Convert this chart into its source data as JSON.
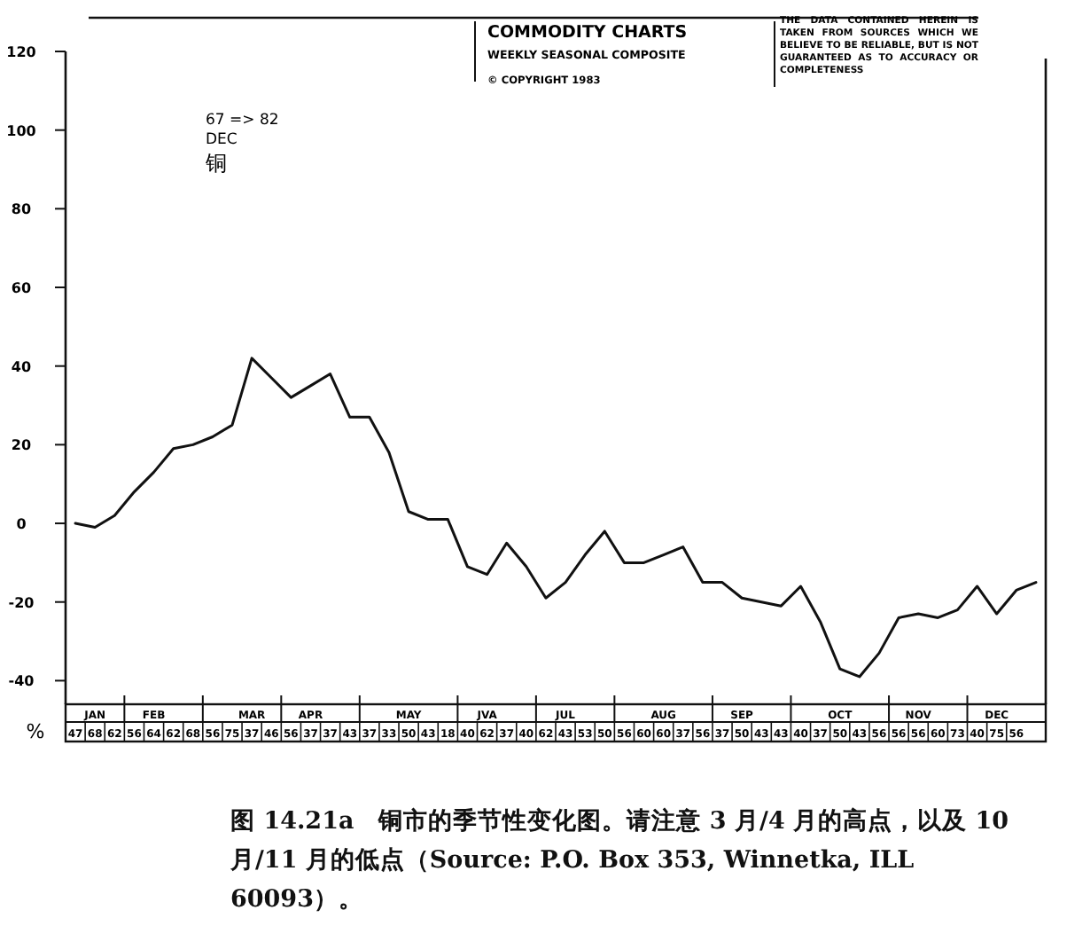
{
  "chart_data": [
    {
      "type": "line",
      "title": "COMMODITY CHARTS",
      "subtitle": "WEEKLY SEASONAL COMPOSITE",
      "annotations": [
        "67 => 82",
        "DEC",
        "铜",
        "© COPYRIGHT 1983",
        "THE DATA CONTAINED HEREIN IS TAKEN FROM SOURCES WHICH WE BELIEVE TO BE RELIABLE, BUT IS NOT GUARANTEED AS TO ACCURACY OR COMPLETENESS",
        "图 14.21a　铜市的季节性变化图。请注意 3 月/4 月的高点，以及 10 月/11 月的低点（Source: P.O. Box 353, Winnetka, ILL 60093）。"
      ],
      "categories": [
        null,
        "JAN",
        null,
        null,
        "FEB",
        null,
        null,
        null,
        null,
        "MAR",
        null,
        null,
        "APR",
        null,
        null,
        null,
        null,
        "MAY",
        null,
        null,
        null,
        "JVA",
        null,
        null,
        null,
        "JUL",
        null,
        null,
        null,
        null,
        "AUG",
        null,
        null,
        null,
        "SEP",
        null,
        null,
        null,
        null,
        "OCT",
        null,
        null,
        null,
        "NOV",
        null,
        null,
        null,
        "DEC",
        null,
        null
      ],
      "series": [
        {
          "color": "#111111",
          "values": [
            0,
            -1,
            2,
            8,
            13,
            19,
            20,
            22,
            25,
            42,
            37,
            32,
            35,
            38,
            27,
            27,
            18,
            3,
            1,
            1,
            -11,
            -13,
            -5,
            -11,
            -19,
            -15,
            -8,
            -2,
            -10,
            -10,
            -8,
            -6,
            -15,
            -15,
            -19,
            -20,
            -21,
            -16,
            -25,
            -37,
            -39,
            -33,
            -24,
            -23,
            -24,
            -22,
            -16,
            -23,
            -17,
            -15
          ]
        }
      ],
      "ylim": [
        -46,
        120
      ],
      "yticks": [
        -40,
        -20,
        0,
        20,
        40,
        60,
        80,
        100,
        120
      ],
      "grid": false,
      "marker": "none",
      "line_style": "solid"
    },
    {
      "type": "other",
      "annotations": [
        "%",
        "47",
        "68",
        "62",
        "56",
        "64",
        "62",
        "68",
        "56",
        "75",
        "37",
        "46",
        "56",
        "37",
        "37",
        "43",
        "37",
        "33",
        "50",
        "43",
        "18",
        "40",
        "62",
        "37",
        "40",
        "62",
        "43",
        "53",
        "50",
        "56",
        "60",
        "60",
        "37",
        "56",
        "37",
        "50",
        "43",
        "43",
        "40",
        "37",
        "50",
        "43",
        "56",
        "56",
        "56",
        "60",
        "73",
        "40",
        "75",
        "56"
      ]
    }
  ]
}
